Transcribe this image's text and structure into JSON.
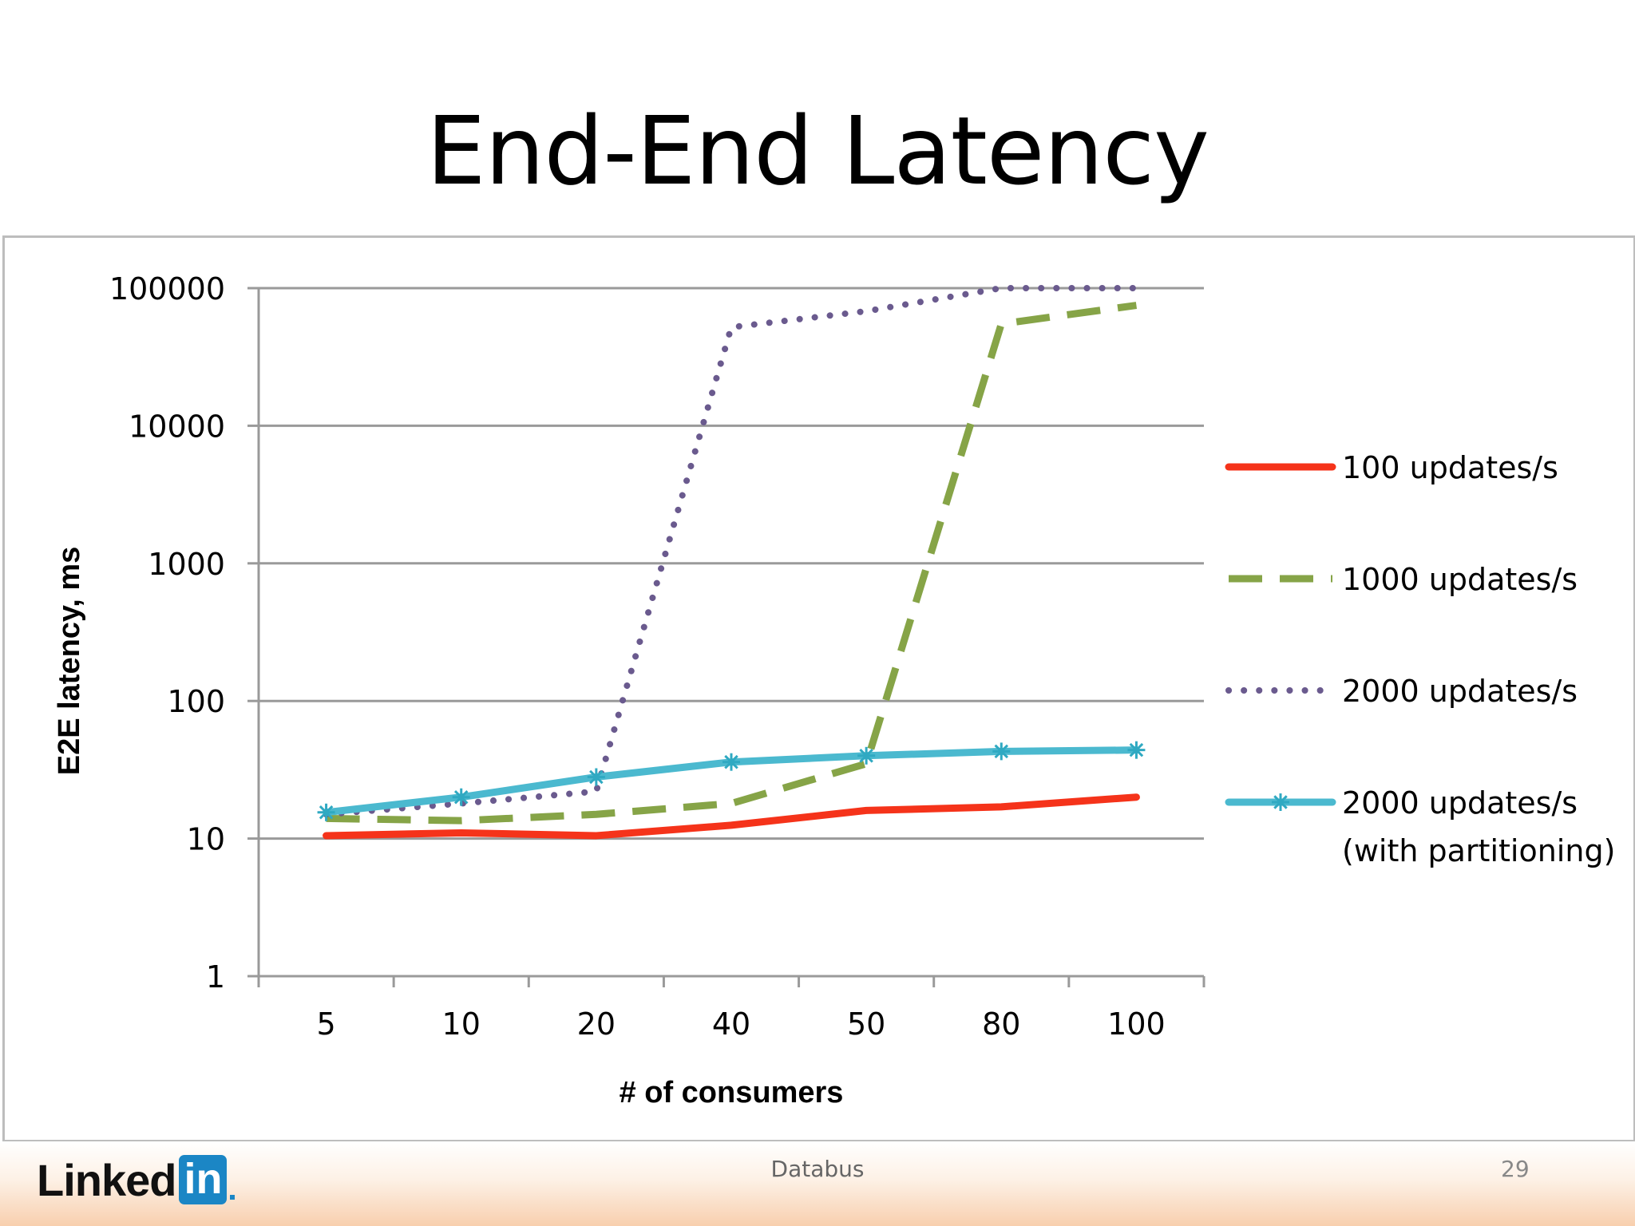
{
  "slide": {
    "title": "End-End Latency",
    "footer_center": "Databus",
    "page_number": "29",
    "logo": {
      "text": "Linked",
      "box_text": "in"
    }
  },
  "chart_data": {
    "type": "line",
    "xlabel": "# of consumers",
    "ylabel": "E2E latency, ms",
    "categories": [
      "5",
      "10",
      "20",
      "40",
      "50",
      "80",
      "100"
    ],
    "y_scale": "log",
    "ylim": [
      1,
      100000
    ],
    "y_ticks": [
      1,
      10,
      100,
      1000,
      10000,
      100000
    ],
    "y_tick_labels": [
      "1",
      "10",
      "100",
      "1000",
      "10000",
      "100000"
    ],
    "grid": "horizontal",
    "legend_position": "right",
    "series": [
      {
        "name": "100 updates/s",
        "values": [
          10.5,
          11,
          10.5,
          12.5,
          16,
          17,
          20
        ],
        "color": "#f5331a",
        "style": "solid"
      },
      {
        "name": "1000 updates/s",
        "values": [
          14,
          13.5,
          15,
          18,
          35,
          55000,
          75000
        ],
        "color": "#86a447",
        "style": "dashed"
      },
      {
        "name": "2000 updates/s",
        "values": [
          15,
          18,
          22,
          52000,
          68000,
          100000,
          100000
        ],
        "color": "#6a5a8e",
        "style": "dotted"
      },
      {
        "name": "2000 updates/s",
        "name_line2": "(with partitioning)",
        "values": [
          15.5,
          20,
          28,
          36,
          40,
          43,
          44
        ],
        "color": "#4bb9cf",
        "style": "solid-star"
      }
    ]
  }
}
